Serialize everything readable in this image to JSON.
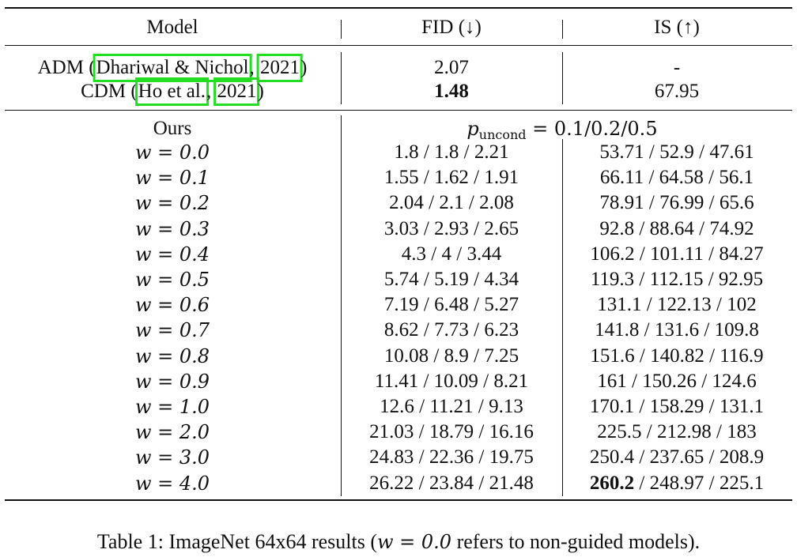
{
  "header": {
    "model": "Model",
    "fid": "FID (↓)",
    "is": "IS (↑)"
  },
  "baselines": [
    {
      "prefix": "ADM (",
      "cite_author": "Dhariwal & Nichol",
      "sep": ", ",
      "cite_year": "2021",
      "suffix": ")",
      "fid": "2.07",
      "is": "-"
    },
    {
      "prefix": "CDM (",
      "cite_author": "Ho et al.",
      "sep": ", ",
      "cite_year": "2021",
      "suffix": ")",
      "fid": "1.48",
      "is": "67.95"
    }
  ],
  "ours": {
    "label": "Ours",
    "p_symbol": "p",
    "p_sub": "uncond",
    "p_values": " = 0.1/0.2/0.5"
  },
  "rows": [
    {
      "w": "w = 0.0",
      "fid": "1.8 / 1.8 / 2.21",
      "is_first": "53.71",
      "is_rest": " / 52.9 / 47.61"
    },
    {
      "w": "w = 0.1",
      "fid": "1.55 / 1.62 / 1.91",
      "is_first": "66.11",
      "is_rest": " / 64.58 / 56.1"
    },
    {
      "w": "w = 0.2",
      "fid": "2.04 / 2.1 / 2.08",
      "is_first": "78.91",
      "is_rest": " / 76.99 / 65.6"
    },
    {
      "w": "w = 0.3",
      "fid": "3.03 / 2.93 / 2.65",
      "is_first": "92.8",
      "is_rest": " / 88.64 / 74.92"
    },
    {
      "w": "w = 0.4",
      "fid": "4.3 / 4 / 3.44",
      "is_first": "106.2",
      "is_rest": " / 101.11 / 84.27"
    },
    {
      "w": "w = 0.5",
      "fid": "5.74 / 5.19 / 4.34",
      "is_first": "119.3",
      "is_rest": " / 112.15 / 92.95"
    },
    {
      "w": "w = 0.6",
      "fid": "7.19 / 6.48 / 5.27",
      "is_first": "131.1",
      "is_rest": " / 122.13 / 102"
    },
    {
      "w": "w = 0.7",
      "fid": "8.62 / 7.73 / 6.23",
      "is_first": "141.8",
      "is_rest": " / 131.6 / 109.8"
    },
    {
      "w": "w = 0.8",
      "fid": "10.08 / 8.9 / 7.25",
      "is_first": "151.6",
      "is_rest": " / 140.82 / 116.9"
    },
    {
      "w": "w = 0.9",
      "fid": "11.41 / 10.09 / 8.21",
      "is_first": "161",
      "is_rest": " / 150.26 / 124.6"
    },
    {
      "w": "w = 1.0",
      "fid": "12.6 / 11.21 / 9.13",
      "is_first": "170.1",
      "is_rest": " / 158.29 / 131.1"
    },
    {
      "w": "w = 2.0",
      "fid": "21.03 / 18.79 / 16.16",
      "is_first": "225.5",
      "is_rest": " / 212.98 / 183"
    },
    {
      "w": "w = 3.0",
      "fid": "24.83 / 22.36 / 19.75",
      "is_first": "250.4",
      "is_rest": " / 237.65 / 208.9"
    },
    {
      "w": "w = 4.0",
      "fid": "26.22 / 23.84 / 21.48",
      "is_first": "260.2",
      "is_rest": " / 248.97 / 225.1",
      "is_first_bold": true
    }
  ],
  "caption": {
    "prefix": "Table 1: ImageNet 64x64 results (",
    "math": "w = 0.0",
    "suffix": " refers to non-guided models)."
  }
}
